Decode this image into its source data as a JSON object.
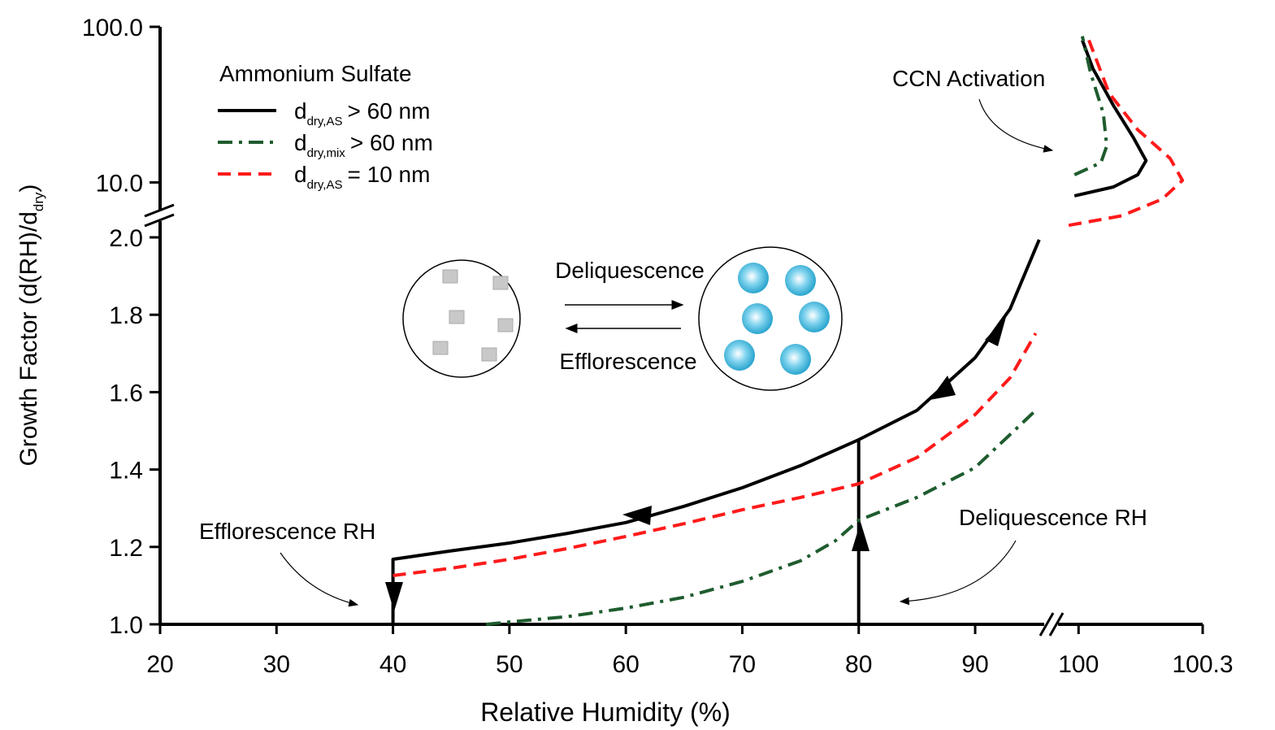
{
  "chart_data": {
    "type": "line",
    "x_label": "Relative Humidity (%)",
    "y_label": {
      "text": "Growth Factor (d(RH)/d",
      "sub": "dry",
      "end": ")"
    },
    "x_segments": [
      {
        "xlim": [
          20,
          96
        ]
      },
      {
        "xlim": [
          99.97,
          100.3
        ]
      }
    ],
    "y_segments": [
      {
        "ylim": [
          1,
          2
        ],
        "scale": "linear"
      },
      {
        "ylim": [
          5,
          100
        ],
        "scale": "log"
      }
    ],
    "xticks": [
      20,
      30,
      40,
      50,
      60,
      70,
      80,
      90,
      100,
      100.3
    ],
    "yticks": [
      {
        "value": 1,
        "label": "1.0"
      },
      {
        "value": 1.2,
        "label": "1.2"
      },
      {
        "value": 1.4,
        "label": "1.4"
      },
      {
        "value": 1.6,
        "label": "1.6"
      },
      {
        "value": 1.8,
        "label": "1.8"
      },
      {
        "value": 2,
        "label": "2.0"
      },
      {
        "value": 10,
        "label": "10.0"
      },
      {
        "value": 100,
        "label": "100.0"
      }
    ],
    "legend_title": "Ammonium Sulfate",
    "legend_position": "upper left",
    "series": [
      {
        "name": {
          "base": "d",
          "sub": "dry,AS",
          "rest": "> 60 nm"
        },
        "color": "#000000",
        "style": "solid",
        "x": [
          40,
          40,
          45,
          50,
          55,
          60,
          65,
          70,
          75,
          80,
          85,
          90,
          93,
          95.5,
          null,
          80,
          80,
          null,
          99.99,
          100.084,
          100.143,
          100.163,
          100.133,
          100.084,
          100.035,
          100.009
        ],
        "values": [
          1,
          1.168,
          1.19,
          1.21,
          1.235,
          1.263,
          1.305,
          1.353,
          1.41,
          1.477,
          1.553,
          1.689,
          1.815,
          1.994,
          null,
          1,
          1.477,
          null,
          8.2,
          9.35,
          11.2,
          13.8,
          19.3,
          31.3,
          53.7,
          82
        ]
      },
      {
        "name": {
          "base": "d",
          "sub": "dry,mix",
          "rest": "> 60 nm"
        },
        "color": "#1e5c2e",
        "style": "dashdot",
        "x": [
          48,
          50,
          55,
          60,
          65,
          70,
          75,
          78,
          80,
          85,
          90,
          95.2,
          null,
          99.99,
          100.054,
          100.068,
          100.06,
          100.029,
          100.009
        ],
        "values": [
          1,
          1.006,
          1.02,
          1.042,
          1.07,
          1.111,
          1.164,
          1.216,
          1.269,
          1.328,
          1.405,
          1.553,
          null,
          11.2,
          13.4,
          17.1,
          27.7,
          50.6,
          87
        ]
      },
      {
        "name": {
          "base": "d",
          "sub": "dry,AS",
          "rest": "= 10 nm"
        },
        "color": "#ff1a1a",
        "style": "dashed",
        "x": [
          40,
          45,
          50,
          55,
          60,
          65,
          70,
          75,
          80,
          85,
          90,
          93,
          95.2,
          null,
          99.976,
          100.104,
          100.202,
          100.251,
          100.221,
          100.143,
          100.074,
          100.025
        ],
        "values": [
          1.126,
          1.145,
          1.168,
          1.196,
          1.227,
          1.26,
          1.296,
          1.328,
          1.363,
          1.431,
          1.542,
          1.637,
          1.752,
          null,
          5.3,
          6.1,
          7.8,
          10.3,
          14.3,
          21.8,
          37.4,
          82
        ]
      }
    ],
    "annotations": {
      "ccn": "CCN Activation",
      "efflorescence_rh": "Efflorescence RH",
      "deliquescence_rh": "Deliquescence RH",
      "deliquescence": "Deliquescence",
      "efflorescence": "Efflorescence"
    }
  }
}
